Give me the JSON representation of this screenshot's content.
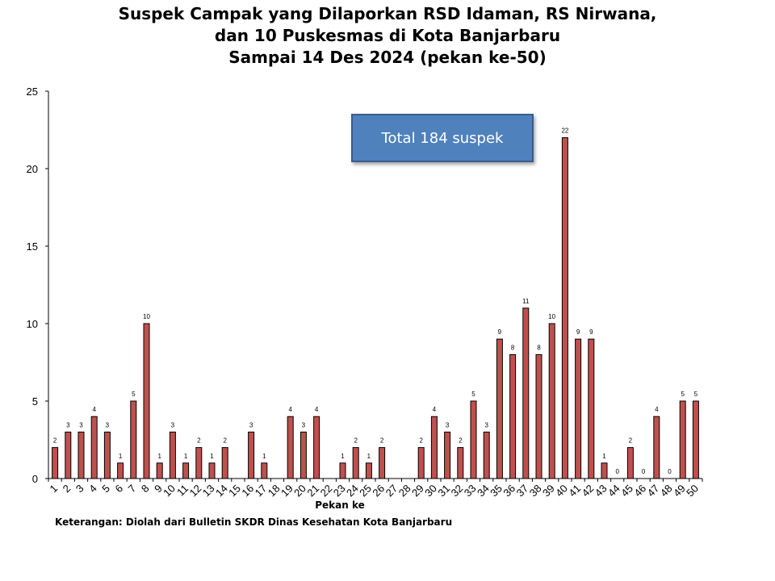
{
  "chart_data": {
    "type": "bar",
    "title_lines": [
      "Suspek Campak yang Dilaporkan RSD Idaman, RS Nirwana,",
      "dan 10 Puskesmas di Kota Banjarbaru",
      "Sampai 14 Des 2024 (pekan ke-50)"
    ],
    "xlabel": "Pekan ke",
    "ylabel": "",
    "ylim": [
      0,
      25
    ],
    "yticks": [
      0,
      5,
      10,
      15,
      20,
      25
    ],
    "grid": false,
    "legend": "none",
    "bar_color": "#c0504d",
    "categories": [
      "1",
      "2",
      "3",
      "4",
      "5",
      "6",
      "7",
      "8",
      "9",
      "10",
      "11",
      "12",
      "13",
      "14",
      "15",
      "16",
      "17",
      "18",
      "19",
      "20",
      "21",
      "22",
      "23",
      "24",
      "25",
      "26",
      "27",
      "28",
      "29",
      "30",
      "31",
      "32",
      "33",
      "34",
      "35",
      "36",
      "37",
      "38",
      "39",
      "40",
      "41",
      "42",
      "43",
      "44",
      "45",
      "46",
      "47",
      "48",
      "49",
      "50"
    ],
    "values": [
      2,
      3,
      3,
      4,
      3,
      1,
      5,
      10,
      1,
      3,
      1,
      2,
      1,
      2,
      null,
      3,
      1,
      null,
      4,
      3,
      4,
      null,
      1,
      2,
      1,
      2,
      null,
      null,
      2,
      4,
      3,
      2,
      5,
      3,
      9,
      8,
      11,
      8,
      10,
      22,
      9,
      9,
      1,
      0,
      2,
      0,
      4,
      0,
      5,
      5
    ],
    "annotation": "Total 184 suspek"
  },
  "footnote": "Keterangan: Diolah dari Bulletin SKDR Dinas Kesehatan Kota Banjarbaru"
}
